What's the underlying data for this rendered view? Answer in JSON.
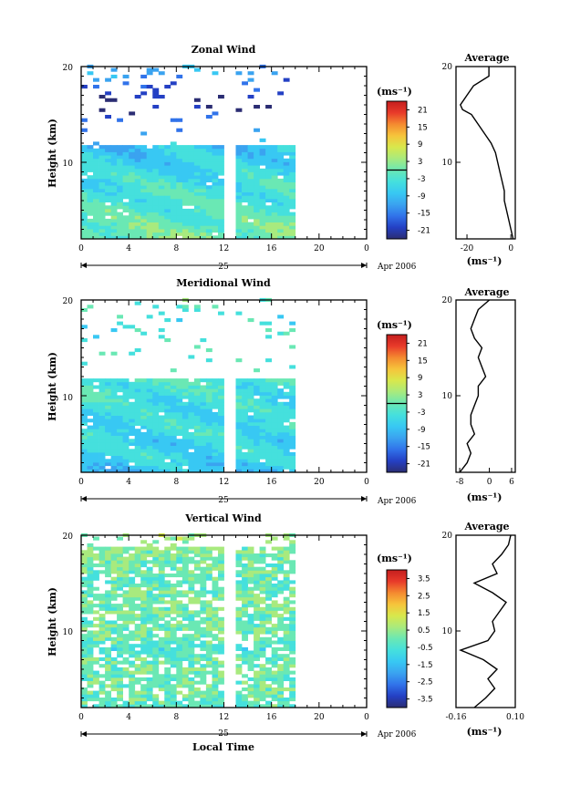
{
  "colors": {
    "scale": [
      "#2b2d73",
      "#2440c4",
      "#3173ea",
      "#3aa3f0",
      "#38c8f3",
      "#45e0dd",
      "#6ae8b4",
      "#a8ea7e",
      "#d8e84c",
      "#f6c43b",
      "#f48a30",
      "#e83a2a",
      "#c41e1e"
    ]
  },
  "footer": {
    "month": "Apr 2006",
    "day": "25",
    "xlabel": "Local Time"
  },
  "chart_data": [
    {
      "type": "heatmap",
      "title": "Zonal Wind",
      "ylabel": "Height (km)",
      "ylim": [
        2,
        20
      ],
      "xlim": [
        0,
        24
      ],
      "x_ticks": [
        "0",
        "4",
        "8",
        "12",
        "16",
        "20",
        "0"
      ],
      "y_ticks": [
        "10",
        "20"
      ],
      "data_gap_hours": [
        12,
        13
      ],
      "data_end_hour": 18,
      "colorbar": {
        "unit": "(ms⁻¹)",
        "ticks": [
          "21",
          "15",
          "9",
          "3",
          "-3",
          "-9",
          "-15",
          "-21"
        ],
        "range": [
          -24,
          24
        ]
      },
      "profile": {
        "type": "line",
        "title": "Average",
        "xlabel": "(ms⁻¹)",
        "xlim": [
          -25,
          2
        ],
        "x_ticks": [
          "-20",
          "0"
        ],
        "y_ticks": [
          "10",
          "20"
        ],
        "height_km": [
          2,
          3,
          4,
          5,
          6,
          7,
          8,
          9,
          10,
          11,
          12,
          13,
          14,
          15,
          15.5,
          16,
          17,
          18,
          19,
          20
        ],
        "values": [
          1,
          0,
          -1,
          -2,
          -3,
          -3,
          -4,
          -5,
          -6,
          -7,
          -9,
          -12,
          -15,
          -18,
          -22,
          -23,
          -20,
          -17,
          -10,
          -10
        ]
      }
    },
    {
      "type": "heatmap",
      "title": "Meridional Wind",
      "ylabel": "Height (km)",
      "ylim": [
        2,
        20
      ],
      "xlim": [
        0,
        24
      ],
      "x_ticks": [
        "0",
        "4",
        "8",
        "12",
        "16",
        "20",
        "0"
      ],
      "y_ticks": [
        "10",
        "20"
      ],
      "data_gap_hours": [
        12,
        13
      ],
      "data_end_hour": 18,
      "colorbar": {
        "unit": "(ms⁻¹)",
        "ticks": [
          "21",
          "15",
          "9",
          "3",
          "-3",
          "-9",
          "-15",
          "-21"
        ],
        "range": [
          -24,
          24
        ]
      },
      "profile": {
        "type": "line",
        "title": "Average",
        "xlabel": "(ms⁻¹)",
        "xlim": [
          -9,
          7
        ],
        "x_ticks": [
          "-8",
          "0",
          "6"
        ],
        "y_ticks": [
          "10",
          "20"
        ],
        "height_km": [
          2,
          3,
          4,
          5,
          6,
          7,
          8,
          9,
          10,
          11,
          12,
          13,
          14,
          15,
          16,
          17,
          18,
          19,
          20
        ],
        "values": [
          -8,
          -6,
          -5,
          -6,
          -4,
          -5,
          -5,
          -4,
          -3,
          -3,
          -1,
          -2,
          -3,
          -2,
          -4,
          -5,
          -4,
          -3,
          0
        ]
      }
    },
    {
      "type": "heatmap",
      "title": "Vertical Wind",
      "ylabel": "Height (km)",
      "ylim": [
        2,
        20
      ],
      "xlim": [
        0,
        24
      ],
      "x_ticks": [
        "0",
        "4",
        "8",
        "12",
        "16",
        "20",
        "0"
      ],
      "y_ticks": [
        "10",
        "20"
      ],
      "data_gap_hours": [
        12,
        13
      ],
      "data_end_hour": 18,
      "colorbar": {
        "unit": "(ms⁻¹)",
        "ticks": [
          "3.5",
          "2.5",
          "1.5",
          "0.5",
          "-0.5",
          "-1.5",
          "-2.5",
          "-3.5"
        ],
        "range": [
          -4,
          4
        ]
      },
      "profile": {
        "type": "line",
        "title": "Average",
        "xlabel": "(ms⁻¹)",
        "xlim": [
          -0.16,
          0.1
        ],
        "x_ticks": [
          "-0.16",
          "0.10"
        ],
        "y_ticks": [
          "10",
          "20"
        ],
        "height_km": [
          2,
          3,
          4,
          5,
          6,
          7,
          8,
          9,
          10,
          11,
          12,
          13,
          14,
          15,
          16,
          17,
          18,
          19,
          20
        ],
        "values": [
          -0.08,
          -0.03,
          0.01,
          -0.02,
          0.02,
          -0.04,
          -0.14,
          -0.02,
          0.01,
          0.0,
          0.03,
          0.06,
          0.0,
          -0.08,
          0.02,
          0.0,
          0.04,
          0.07,
          0.08
        ]
      }
    }
  ]
}
